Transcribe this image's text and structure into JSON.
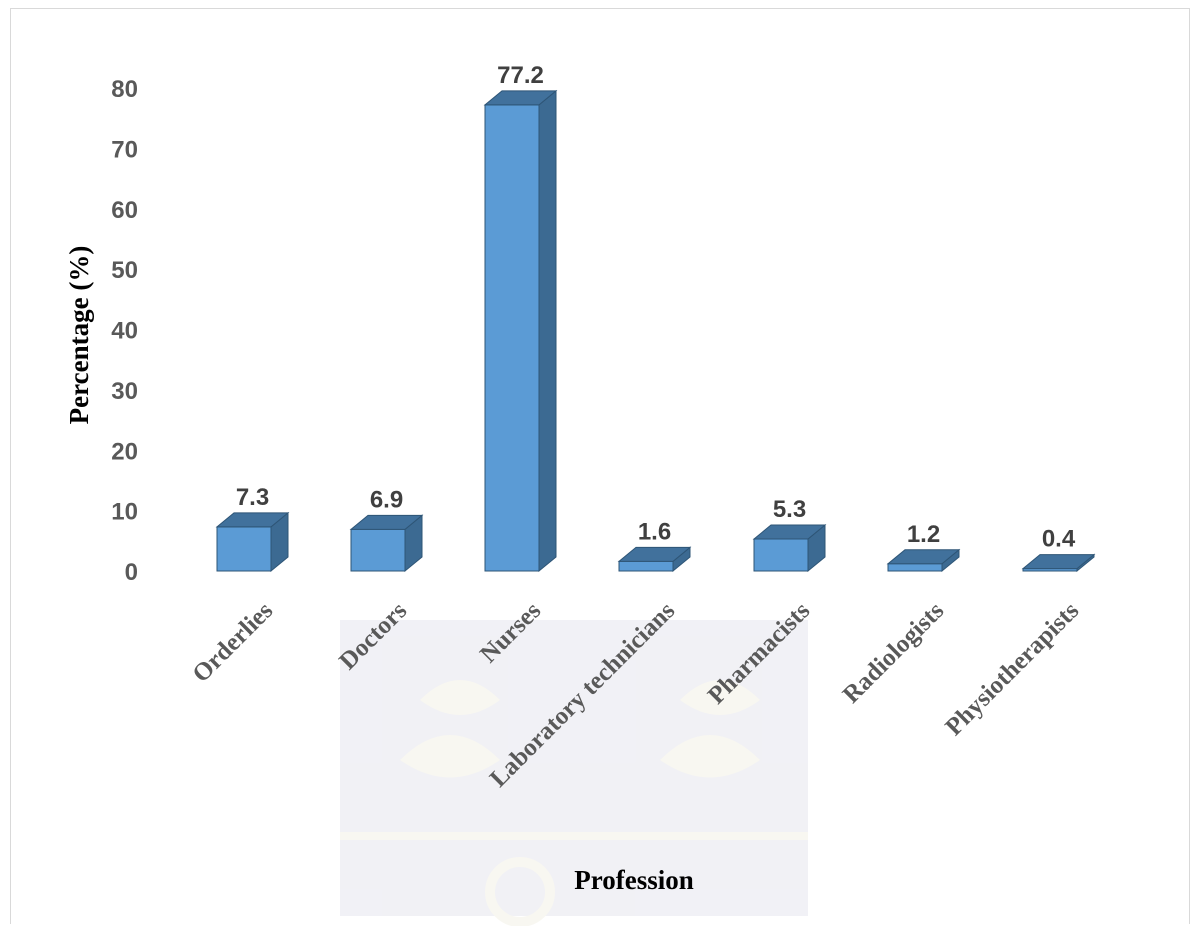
{
  "chart_data": {
    "type": "bar",
    "style": "3d-column",
    "categories": [
      "Orderlies",
      "Doctors",
      "Nurses",
      "Laboratory technicians",
      "Pharmacists",
      "Radiologists",
      "Physiotherapists"
    ],
    "values": [
      7.3,
      6.9,
      77.2,
      1.6,
      5.3,
      1.2,
      0.4
    ],
    "data_labels": [
      "7.3",
      "6.9",
      "77.2",
      "1.6",
      "5.3",
      "1.2",
      "0.4"
    ],
    "yticks": [
      "0",
      "10",
      "20",
      "30",
      "40",
      "50",
      "60",
      "70",
      "80"
    ],
    "xlabel": "Profession",
    "ylabel": "Percentage (%)",
    "ylim": [
      0,
      80
    ],
    "grid": false,
    "legend": "none",
    "colors": {
      "front": "#5b9bd5",
      "side": "#3c6a92",
      "top": "#41719c",
      "edge": "#2e5576"
    }
  }
}
